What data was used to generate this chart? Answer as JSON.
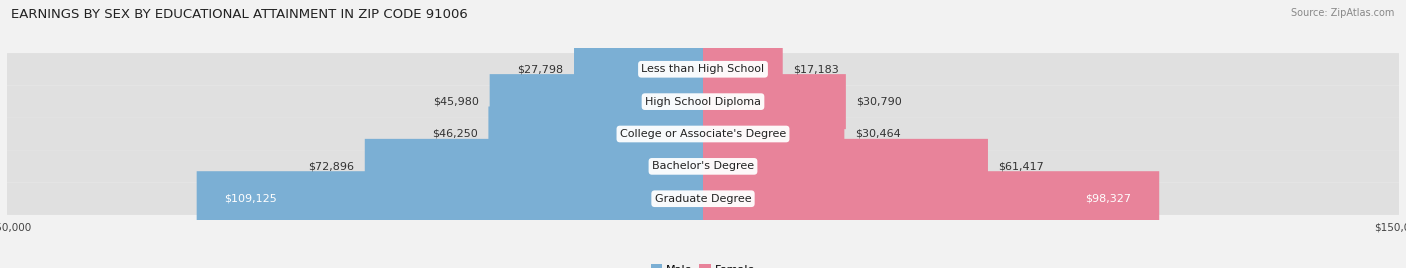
{
  "title": "EARNINGS BY SEX BY EDUCATIONAL ATTAINMENT IN ZIP CODE 91006",
  "source": "Source: ZipAtlas.com",
  "categories": [
    "Less than High School",
    "High School Diploma",
    "College or Associate's Degree",
    "Bachelor's Degree",
    "Graduate Degree"
  ],
  "male_values": [
    27798,
    45980,
    46250,
    72896,
    109125
  ],
  "female_values": [
    17183,
    30790,
    30464,
    61417,
    98327
  ],
  "male_color": "#7bafd4",
  "female_color": "#e8839a",
  "max_value": 150000,
  "bg_color": "#f2f2f2",
  "row_bg_color": "#e0e0e0",
  "title_fontsize": 9.5,
  "label_fontsize": 8,
  "value_fontsize": 8,
  "axis_label_fontsize": 7.5,
  "legend_fontsize": 8
}
